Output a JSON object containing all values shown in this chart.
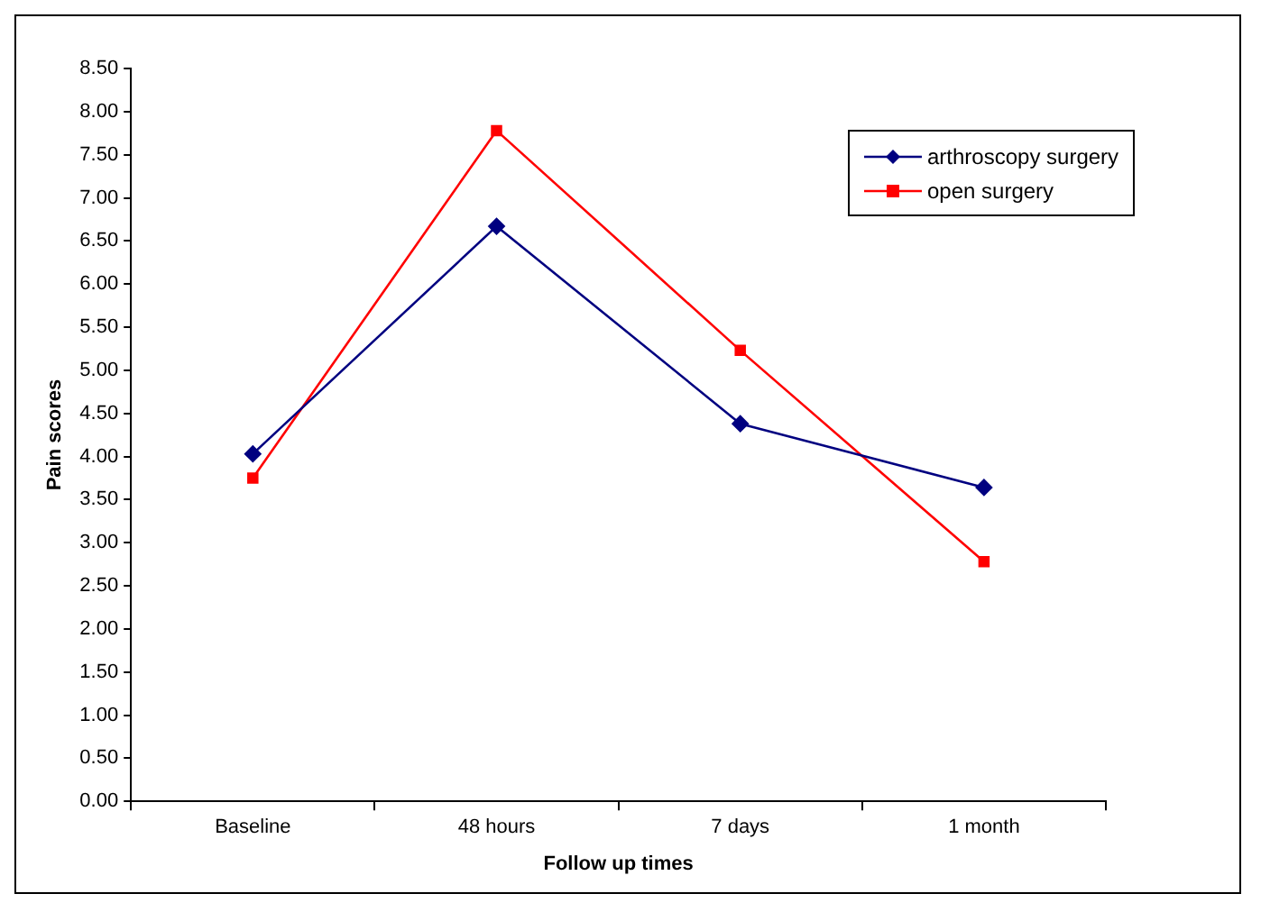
{
  "chart_data": {
    "type": "line",
    "xlabel": "Follow up times",
    "ylabel": "Pain scores",
    "categories": [
      "Baseline",
      "48 hours",
      "7 days",
      "1 month"
    ],
    "series": [
      {
        "name": "arthroscopy surgery",
        "color": "#000080",
        "marker": "diamond",
        "values": [
          4.03,
          6.67,
          4.38,
          3.64
        ]
      },
      {
        "name": "open surgery",
        "color": "#ff0000",
        "marker": "square",
        "values": [
          3.75,
          7.78,
          5.23,
          2.78
        ]
      }
    ],
    "ylim": [
      0,
      8.5
    ],
    "yticks": [
      {
        "value": 0,
        "label": "0.00"
      },
      {
        "value": 0.5,
        "label": "0.50"
      },
      {
        "value": 1,
        "label": "1.00"
      },
      {
        "value": 1.5,
        "label": "1.50"
      },
      {
        "value": 2,
        "label": "2.00"
      },
      {
        "value": 2.5,
        "label": "2.50"
      },
      {
        "value": 3,
        "label": "3.00"
      },
      {
        "value": 3.5,
        "label": "3.50"
      },
      {
        "value": 4,
        "label": "4.00"
      },
      {
        "value": 4.5,
        "label": "4.50"
      },
      {
        "value": 5,
        "label": "5.00"
      },
      {
        "value": 5.5,
        "label": "5.50"
      },
      {
        "value": 6,
        "label": "6.00"
      },
      {
        "value": 6.5,
        "label": "6.50"
      },
      {
        "value": 7,
        "label": "7.00"
      },
      {
        "value": 7.5,
        "label": "7.50"
      },
      {
        "value": 8,
        "label": "8.00"
      },
      {
        "value": 8.5,
        "label": "8.50"
      }
    ],
    "grid": false,
    "legend": "top right"
  }
}
